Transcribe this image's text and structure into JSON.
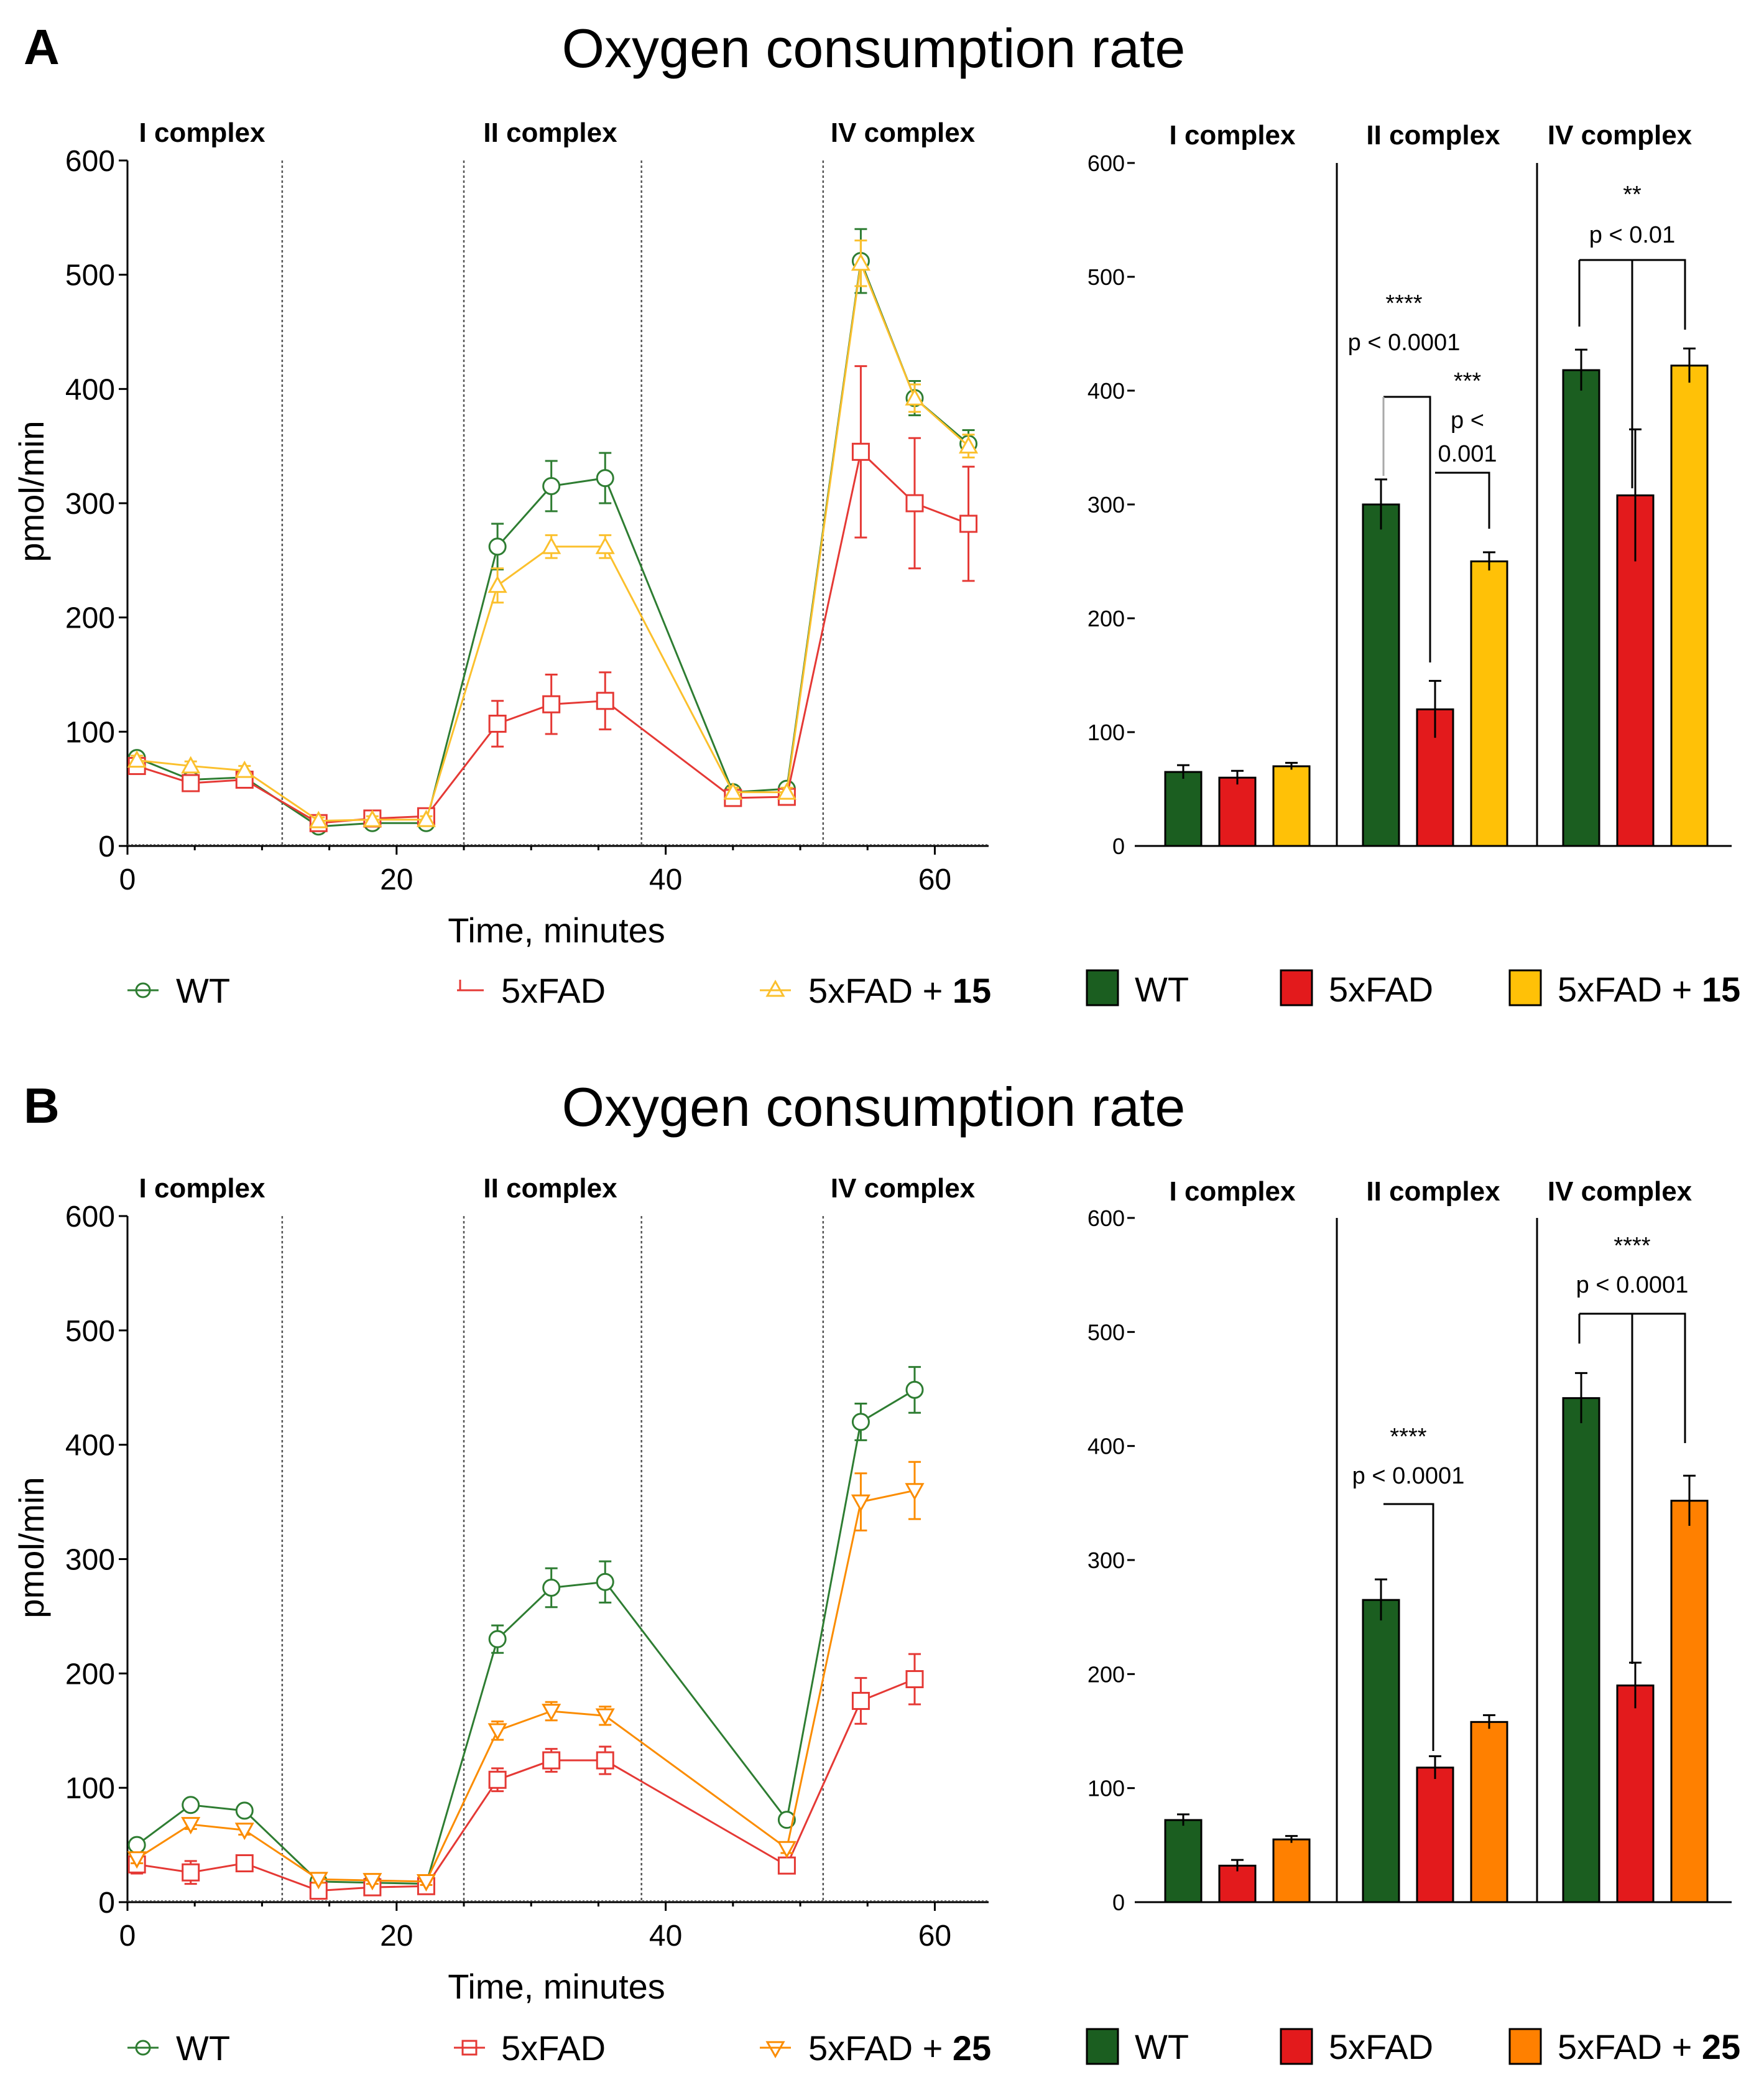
{
  "panels": [
    {
      "letter": "A",
      "title": "Oxygen consumption rate",
      "line_chart": {
        "complex_labels": [
          "I complex",
          "II complex",
          "IV complex"
        ],
        "ylabel": "pmol/min",
        "xlabel": "Time, minutes",
        "yticks": [
          "0",
          "100",
          "200",
          "300",
          "400",
          "500",
          "600"
        ],
        "xticks": [
          "0",
          "20",
          "40",
          "60"
        ]
      },
      "bar_chart": {
        "complex_labels": [
          "I complex",
          "II complex",
          "IV complex"
        ],
        "yticks": [
          "0",
          "100",
          "200",
          "300",
          "400",
          "500",
          "600"
        ],
        "annotations": [
          {
            "stars": "****",
            "p": "p < 0.0001"
          },
          {
            "stars": "***",
            "p1": "p <",
            "p2": "0.001"
          },
          {
            "stars": "**",
            "p": "p < 0.01"
          }
        ]
      },
      "line_legend": [
        {
          "name": "WT",
          "color": "#2e7d32",
          "marker": "circle"
        },
        {
          "name": "5xFAD",
          "color": "#e53935",
          "marker": "square"
        },
        {
          "name_prefix": "5xFAD + ",
          "name_bold": "15",
          "color": "#fbc02d",
          "marker": "triangle-up"
        }
      ],
      "bar_legend": [
        {
          "name": "WT",
          "color": "#1b5e20"
        },
        {
          "name": "5xFAD",
          "color": "#e31a1c"
        },
        {
          "name_prefix": "5xFAD + ",
          "name_bold": "15",
          "color": "#ffc107"
        }
      ]
    },
    {
      "letter": "B",
      "title": "Oxygen consumption rate",
      "line_chart": {
        "complex_labels": [
          "I complex",
          "II complex",
          "IV complex"
        ],
        "ylabel": "pmol/min",
        "xlabel": "Time, minutes",
        "yticks": [
          "0",
          "100",
          "200",
          "300",
          "400",
          "500",
          "600"
        ],
        "xticks": [
          "0",
          "20",
          "40",
          "60"
        ]
      },
      "bar_chart": {
        "complex_labels": [
          "I complex",
          "II complex",
          "IV complex"
        ],
        "yticks": [
          "0",
          "100",
          "200",
          "300",
          "400",
          "500",
          "600"
        ],
        "annotations": [
          {
            "stars": "****",
            "p": "p < 0.0001"
          },
          {
            "stars": "****",
            "p": "p < 0.0001"
          }
        ]
      },
      "line_legend": [
        {
          "name": "WT",
          "color": "#2e7d32",
          "marker": "circle"
        },
        {
          "name": "5xFAD",
          "color": "#e53935",
          "marker": "square"
        },
        {
          "name_prefix": "5xFAD + ",
          "name_bold": "25",
          "color": "#fb8c00",
          "marker": "triangle-down"
        }
      ],
      "bar_legend": [
        {
          "name": "WT",
          "color": "#1b5e20"
        },
        {
          "name": "5xFAD",
          "color": "#e31a1c"
        },
        {
          "name_prefix": "5xFAD + ",
          "name_bold": "25",
          "color": "#ff8000"
        }
      ]
    }
  ],
  "chart_data": [
    {
      "panel": "A",
      "type": "line",
      "xlim": [
        0,
        64
      ],
      "ylim": [
        0,
        600
      ],
      "complex_boundaries_x": [
        11.5,
        25,
        38.2,
        51.7
      ],
      "series": [
        {
          "name": "WT",
          "color": "#2e7d32",
          "marker": "circle",
          "x": [
            0.7,
            4.7,
            8.7,
            14.2,
            18.2,
            22.2,
            27.5,
            31.5,
            35.5,
            45,
            49,
            54.5,
            58.5,
            62.5
          ],
          "y": [
            77,
            58,
            60,
            17,
            20,
            20,
            262,
            315,
            322,
            47,
            50,
            512,
            392,
            352
          ],
          "err": [
            5,
            5,
            5,
            3,
            3,
            3,
            20,
            22,
            22,
            4,
            4,
            28,
            15,
            12
          ]
        },
        {
          "name": "5xFAD",
          "color": "#e53935",
          "marker": "square",
          "x": [
            0.7,
            4.7,
            8.7,
            14.2,
            18.2,
            22.2,
            27.5,
            31.5,
            35.5,
            45,
            49,
            54.5,
            58.5,
            62.5
          ],
          "y": [
            70,
            55,
            58,
            20,
            24,
            26,
            107,
            124,
            127,
            42,
            43,
            345,
            300,
            282
          ],
          "err": [
            5,
            5,
            5,
            3,
            3,
            3,
            20,
            26,
            25,
            4,
            4,
            75,
            57,
            50
          ]
        },
        {
          "name": "5xFAD + 15",
          "color": "#fbc02d",
          "marker": "triangle-up",
          "x": [
            0.7,
            4.7,
            8.7,
            14.2,
            18.2,
            22.2,
            27.5,
            31.5,
            35.5,
            45,
            49,
            54.5,
            58.5,
            62.5
          ],
          "y": [
            75,
            70,
            66,
            22,
            23,
            23,
            228,
            262,
            262,
            47,
            47,
            510,
            392,
            350
          ],
          "err": [
            4,
            4,
            4,
            3,
            3,
            3,
            15,
            10,
            10,
            4,
            4,
            20,
            12,
            10
          ]
        }
      ]
    },
    {
      "panel": "A",
      "type": "bar",
      "ylim": [
        0,
        600
      ],
      "categories": [
        "I complex",
        "II complex",
        "IV complex"
      ],
      "series": [
        {
          "name": "WT",
          "color": "#1b5e20",
          "values": [
            65,
            300,
            418
          ],
          "err": [
            6,
            22,
            18
          ]
        },
        {
          "name": "5xFAD",
          "color": "#e31a1c",
          "values": [
            60,
            120,
            308
          ],
          "err": [
            6,
            25,
            58
          ]
        },
        {
          "name": "5xFAD + 15",
          "color": "#ffc107",
          "values": [
            70,
            250,
            422
          ],
          "err": [
            3,
            8,
            15
          ]
        }
      ]
    },
    {
      "panel": "B",
      "type": "line",
      "xlim": [
        0,
        64
      ],
      "ylim": [
        0,
        600
      ],
      "complex_boundaries_x": [
        11.5,
        25,
        38.2,
        51.7
      ],
      "series": [
        {
          "name": "WT",
          "color": "#2e7d32",
          "marker": "circle",
          "x": [
            0.7,
            4.7,
            8.7,
            14.2,
            18.2,
            22.2,
            27.5,
            31.5,
            35.5,
            49,
            54.5,
            58.5
          ],
          "y": [
            50,
            85,
            80,
            18,
            17,
            16,
            230,
            275,
            280,
            72,
            420,
            448
          ],
          "err": [
            4,
            4,
            4,
            3,
            3,
            3,
            12,
            17,
            18,
            4,
            16,
            20
          ]
        },
        {
          "name": "5xFAD",
          "color": "#e53935",
          "marker": "square",
          "x": [
            0.7,
            4.7,
            8.7,
            14.2,
            18.2,
            22.2,
            27.5,
            31.5,
            35.5,
            49,
            54.5,
            58.5
          ],
          "y": [
            33,
            26,
            34,
            10,
            13,
            14,
            107,
            124,
            124,
            32,
            176,
            195
          ],
          "err": [
            8,
            10,
            5,
            3,
            3,
            3,
            10,
            10,
            12,
            4,
            20,
            22
          ]
        },
        {
          "name": "5xFAD + 25",
          "color": "#fb8c00",
          "marker": "triangle-down",
          "x": [
            0.7,
            4.7,
            8.7,
            14.2,
            18.2,
            22.2,
            27.5,
            31.5,
            35.5,
            49,
            54.5,
            58.5
          ],
          "y": [
            38,
            68,
            63,
            20,
            19,
            18,
            150,
            167,
            163,
            47,
            350,
            360
          ],
          "err": [
            4,
            4,
            4,
            3,
            3,
            3,
            8,
            8,
            8,
            4,
            25,
            25
          ]
        }
      ]
    },
    {
      "panel": "B",
      "type": "bar",
      "ylim": [
        0,
        600
      ],
      "categories": [
        "I complex",
        "II complex",
        "IV complex"
      ],
      "series": [
        {
          "name": "WT",
          "color": "#1b5e20",
          "values": [
            72,
            265,
            442
          ],
          "err": [
            5,
            18,
            22
          ]
        },
        {
          "name": "5xFAD",
          "color": "#e31a1c",
          "values": [
            32,
            118,
            190
          ],
          "err": [
            5,
            10,
            20
          ]
        },
        {
          "name": "5xFAD + 25",
          "color": "#ff8000",
          "values": [
            55,
            158,
            352
          ],
          "err": [
            3,
            6,
            22
          ]
        }
      ]
    }
  ]
}
